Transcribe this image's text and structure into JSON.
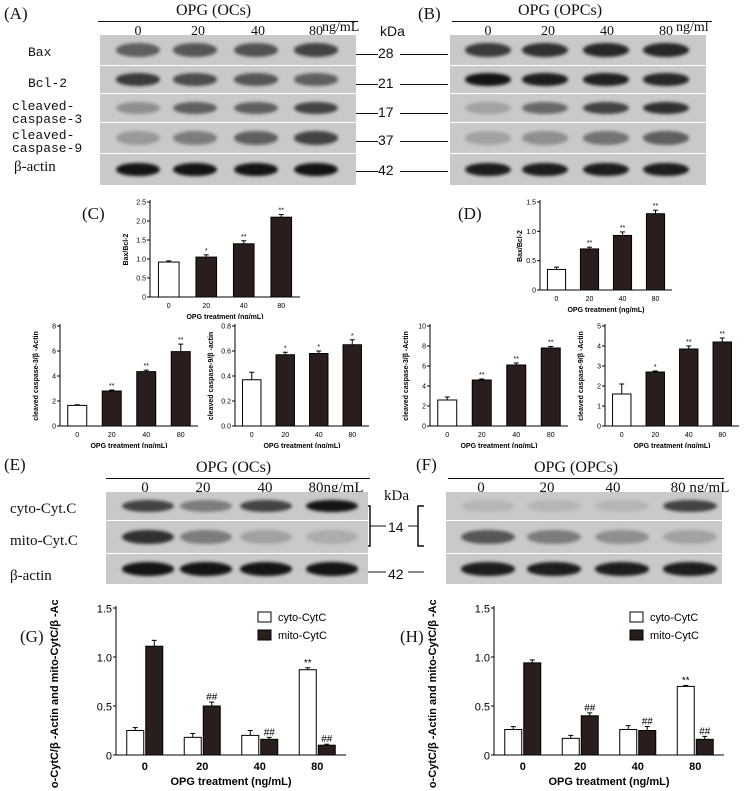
{
  "panels": {
    "A": "(A)",
    "B": "(B)",
    "C": "(C)",
    "D": "(D)",
    "E": "(E)",
    "F": "(F)",
    "G": "(G)",
    "H": "(H)"
  },
  "blotA": {
    "title": "OPG  (OCs)",
    "lanes": [
      "0",
      "20",
      "40",
      "80"
    ],
    "unit": "ng/mL",
    "kda_label": "kDa",
    "rows": [
      {
        "label": "Bax",
        "kda": "28",
        "intensity": [
          0.55,
          0.6,
          0.62,
          0.7
        ]
      },
      {
        "label": "Bcl-2",
        "kda": "21",
        "intensity": [
          0.75,
          0.65,
          0.6,
          0.55
        ]
      },
      {
        "label": "cleaved-\ncaspase-3",
        "kda": "17",
        "intensity": [
          0.3,
          0.55,
          0.55,
          0.7
        ]
      },
      {
        "label": "cleaved-\ncaspase-9",
        "kda": "37",
        "intensity": [
          0.25,
          0.4,
          0.55,
          0.7
        ]
      },
      {
        "label": "β-actin",
        "kda": "42",
        "intensity": [
          0.95,
          0.95,
          0.95,
          0.95
        ]
      }
    ]
  },
  "blotB": {
    "title": "OPG (OPCs)",
    "lanes": [
      "0",
      "20",
      "40",
      "80"
    ],
    "unit": "ng/ml",
    "intensity": [
      [
        0.75,
        0.8,
        0.85,
        0.85
      ],
      [
        0.95,
        0.9,
        0.88,
        0.85
      ],
      [
        0.2,
        0.5,
        0.7,
        0.8
      ],
      [
        0.2,
        0.3,
        0.45,
        0.55
      ],
      [
        0.9,
        0.9,
        0.9,
        0.9
      ]
    ]
  },
  "blotE": {
    "title": "OPG  (OCs)",
    "lanes": [
      "0",
      "20",
      "40",
      "80ng/mL"
    ],
    "kda_label": "kDa",
    "rows": [
      {
        "label": "cyto-Cyt.C"
      },
      {
        "label": "mito-Cyt.C"
      },
      {
        "label": "β-actin"
      }
    ],
    "kda": [
      "14",
      "42"
    ],
    "intensity": [
      [
        0.7,
        0.4,
        0.7,
        0.95
      ],
      [
        0.8,
        0.4,
        0.2,
        0.15
      ],
      [
        0.95,
        0.95,
        0.95,
        0.95
      ]
    ]
  },
  "blotF": {
    "title": "OPG (OPCs)",
    "lanes": [
      "0",
      "20",
      "40",
      "80 ng/mL"
    ],
    "intensity": [
      [
        0.1,
        0.1,
        0.1,
        0.7
      ],
      [
        0.6,
        0.4,
        0.3,
        0.2
      ],
      [
        0.9,
        0.9,
        0.9,
        0.9
      ]
    ]
  },
  "chart_data": [
    {
      "id": "C",
      "type": "bar",
      "categories": [
        "0",
        "20",
        "40",
        "80"
      ],
      "values": [
        0.92,
        1.05,
        1.4,
        2.1
      ],
      "errors": [
        0.03,
        0.06,
        0.08,
        0.07
      ],
      "sig": [
        "",
        "*",
        "**",
        "**"
      ],
      "ylabel": "Bax/Bcl-2",
      "xlabel": "OPG treatment (ng/mL)",
      "ylim": [
        0,
        2.5
      ],
      "yticks": [
        "0",
        "0.5",
        "1.0",
        "1.5",
        "2.0",
        "2.5"
      ]
    },
    {
      "id": "D",
      "type": "bar",
      "categories": [
        "0",
        "20",
        "40",
        "80"
      ],
      "values": [
        0.35,
        0.7,
        0.93,
        1.3
      ],
      "errors": [
        0.04,
        0.03,
        0.06,
        0.06
      ],
      "sig": [
        "",
        "**",
        "**",
        "**"
      ],
      "ylabel": "Bax/Bcl-2",
      "xlabel": "OPG treatment (ng/mL)",
      "ylim": [
        0,
        1.5
      ],
      "yticks": [
        "0",
        "0.5",
        "1.0",
        "1.5"
      ]
    },
    {
      "id": "C1",
      "type": "bar",
      "categories": [
        "0",
        "20",
        "40",
        "80"
      ],
      "values": [
        1.65,
        2.8,
        4.35,
        5.95
      ],
      "errors": [
        0.05,
        0.08,
        0.12,
        0.6
      ],
      "sig": [
        "",
        "**",
        "**",
        "**"
      ],
      "ylabel": "cleaved caspase-3/β -Actin",
      "xlabel": "OPG treatment (ng/mL)",
      "ylim": [
        0,
        8
      ],
      "yticks": [
        "0",
        "2",
        "4",
        "6",
        "8"
      ]
    },
    {
      "id": "C2",
      "type": "bar",
      "categories": [
        "0",
        "20",
        "40",
        "80"
      ],
      "values": [
        0.37,
        0.57,
        0.58,
        0.65
      ],
      "errors": [
        0.06,
        0.02,
        0.02,
        0.04
      ],
      "sig": [
        "",
        "*",
        "*",
        "*"
      ],
      "ylabel": "cleaved caspase-9/β -actin",
      "xlabel": "OPG treatment (ng/mL)",
      "ylim": [
        0,
        0.8
      ],
      "yticks": [
        "0.0",
        "0.2",
        "0.4",
        "0.6",
        "0.8"
      ]
    },
    {
      "id": "D1",
      "type": "bar",
      "categories": [
        "0",
        "20",
        "40",
        "80"
      ],
      "values": [
        2.6,
        4.6,
        6.1,
        7.8
      ],
      "errors": [
        0.3,
        0.1,
        0.2,
        0.15
      ],
      "sig": [
        "",
        "**",
        "**",
        "**"
      ],
      "ylabel": "cleaved caspase-3/β -Actin",
      "xlabel": "OPG treatment (ng/mL)",
      "ylim": [
        0,
        10
      ],
      "yticks": [
        "0",
        "2",
        "4",
        "6",
        "8",
        "10"
      ]
    },
    {
      "id": "D2",
      "type": "bar",
      "categories": [
        "0",
        "20",
        "40",
        "80"
      ],
      "values": [
        1.6,
        2.7,
        3.85,
        4.2
      ],
      "errors": [
        0.5,
        0.05,
        0.15,
        0.2
      ],
      "sig": [
        "",
        "*",
        "**",
        "**"
      ],
      "ylabel": "cleaved caspase-9/β -Actin",
      "xlabel": "OPG treatment (ng/mL)",
      "ylim": [
        0,
        5
      ],
      "yticks": [
        "0",
        "1",
        "2",
        "3",
        "4",
        "5"
      ]
    },
    {
      "id": "G",
      "type": "bar",
      "categories": [
        "0",
        "20",
        "40",
        "80"
      ],
      "series": [
        {
          "name": "cyto-CytC",
          "values": [
            0.25,
            0.18,
            0.2,
            0.87
          ],
          "errors": [
            0.03,
            0.04,
            0.05,
            0.02
          ],
          "sig": [
            "",
            "",
            "",
            "**"
          ]
        },
        {
          "name": "mito-CytC",
          "values": [
            1.11,
            0.5,
            0.16,
            0.1
          ],
          "errors": [
            0.06,
            0.04,
            0.02,
            0.01
          ],
          "sig": [
            "",
            "##",
            "##",
            "##"
          ]
        }
      ],
      "ylabel": "cyto-CytC/β -Actin and mito-CytC/β -Actin ratio",
      "xlabel": "OPG treatment (ng/mL)",
      "ylim": [
        0,
        1.5
      ],
      "yticks": [
        "0",
        "0.5",
        "1.0",
        "1.5"
      ]
    },
    {
      "id": "H",
      "type": "bar",
      "categories": [
        "0",
        "20",
        "40",
        "80"
      ],
      "series": [
        {
          "name": "cyto-CytC",
          "values": [
            0.26,
            0.17,
            0.26,
            0.7
          ],
          "errors": [
            0.03,
            0.03,
            0.04,
            0.01
          ],
          "sig": [
            "",
            "",
            "",
            "**"
          ]
        },
        {
          "name": "mito-CytC",
          "values": [
            0.94,
            0.4,
            0.25,
            0.16
          ],
          "errors": [
            0.03,
            0.03,
            0.04,
            0.03
          ],
          "sig": [
            "",
            "##",
            "##",
            "##"
          ]
        }
      ],
      "ylabel": "cyto-CytC/β -Actin and mito-CytC/β -Actin ratio",
      "xlabel": "OPG treatment (ng/mL)",
      "ylim": [
        0,
        1.5
      ],
      "yticks": [
        "0",
        "0.5",
        "1.0",
        "1.5"
      ]
    }
  ]
}
